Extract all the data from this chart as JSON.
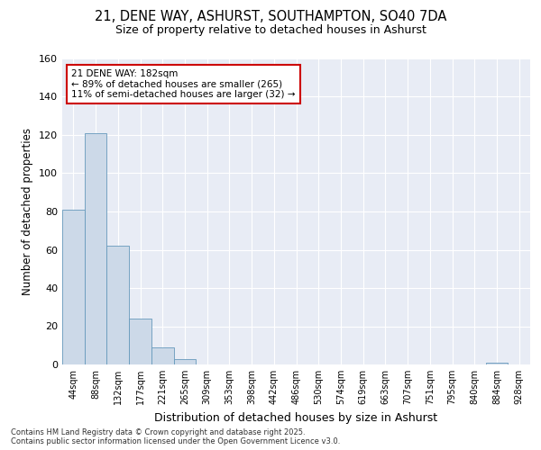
{
  "title_line1": "21, DENE WAY, ASHURST, SOUTHAMPTON, SO40 7DA",
  "title_line2": "Size of property relative to detached houses in Ashurst",
  "xlabel": "Distribution of detached houses by size in Ashurst",
  "ylabel": "Number of detached properties",
  "categories": [
    "44sqm",
    "88sqm",
    "132sqm",
    "177sqm",
    "221sqm",
    "265sqm",
    "309sqm",
    "353sqm",
    "398sqm",
    "442sqm",
    "486sqm",
    "530sqm",
    "574sqm",
    "619sqm",
    "663sqm",
    "707sqm",
    "751sqm",
    "795sqm",
    "840sqm",
    "884sqm",
    "928sqm"
  ],
  "values": [
    81,
    121,
    62,
    24,
    9,
    3,
    0,
    0,
    0,
    0,
    0,
    0,
    0,
    0,
    0,
    0,
    0,
    0,
    0,
    1,
    0
  ],
  "bar_color": "#ccd9e8",
  "bar_edge_color": "#6699bb",
  "annotation_line1": "21 DENE WAY: 182sqm",
  "annotation_line2": "← 89% of detached houses are smaller (265)",
  "annotation_line3": "11% of semi-detached houses are larger (32) →",
  "annotation_box_color": "#ffffff",
  "annotation_box_edge": "#cc0000",
  "ylim": [
    0,
    160
  ],
  "yticks": [
    0,
    20,
    40,
    60,
    80,
    100,
    120,
    140,
    160
  ],
  "fig_bg_color": "#ffffff",
  "plot_bg_color": "#e8ecf5",
  "footer_text": "Contains HM Land Registry data © Crown copyright and database right 2025.\nContains public sector information licensed under the Open Government Licence v3.0.",
  "grid_color": "#ffffff",
  "vline_x": 2.5
}
